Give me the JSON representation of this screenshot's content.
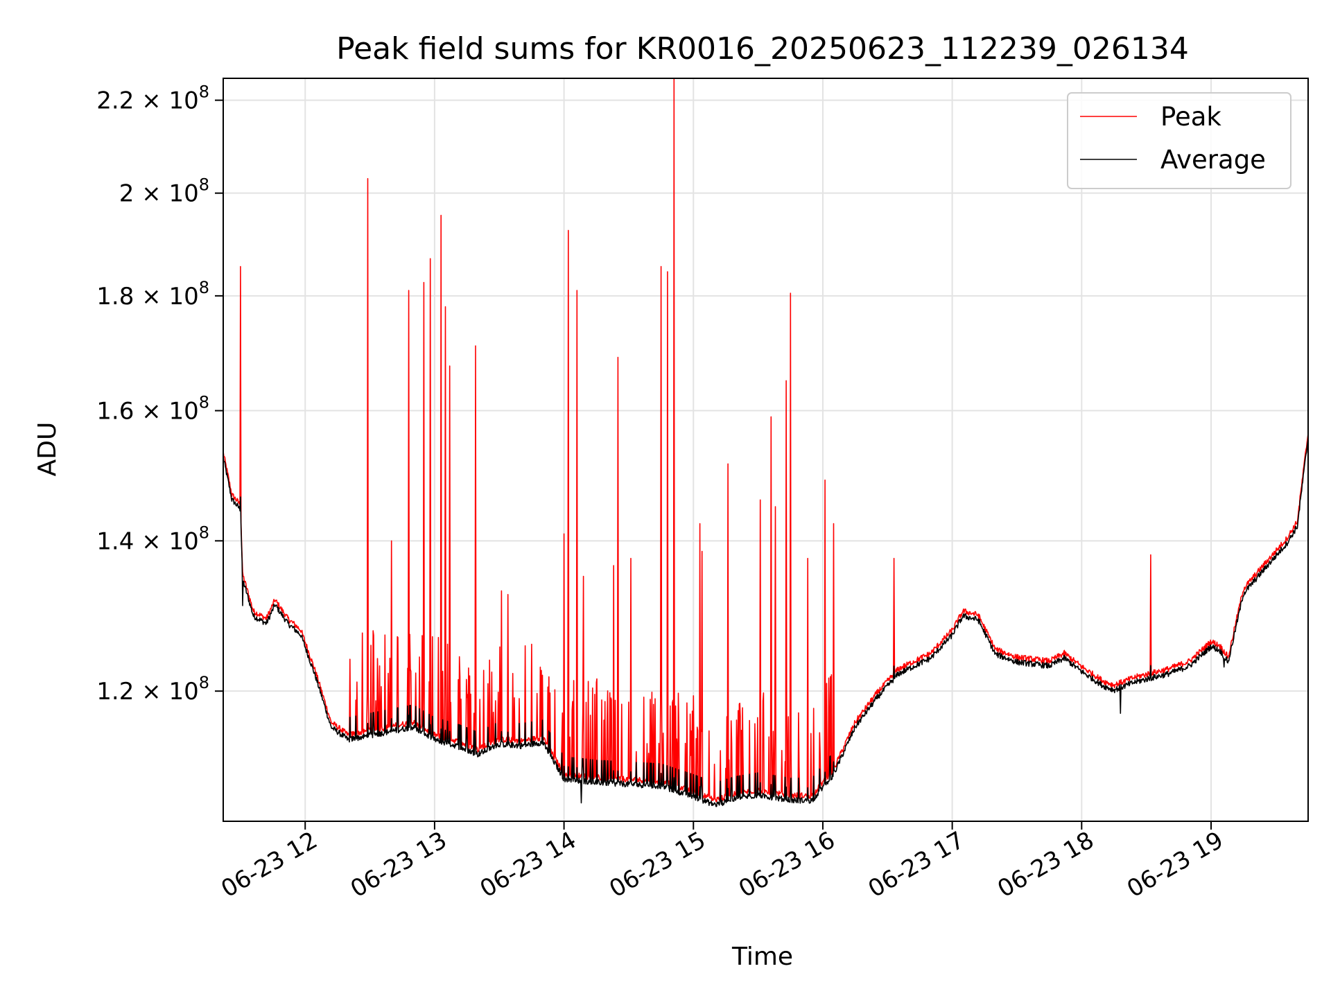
{
  "chart_data": {
    "type": "line",
    "title": "Peak field sums for KR0016_20250623_112239_026134",
    "xlabel": "Time",
    "ylabel": "ADU",
    "y_scale": "log",
    "x_unit": "time of day, 2025-06-23",
    "xlim": [
      "2025-06-23 11:22",
      "2025-06-23 19:45"
    ],
    "ylim": [
      105000000,
      225000000
    ],
    "x_ticks": [
      "2025-06-23 12:00",
      "2025-06-23 13:00",
      "2025-06-23 14:00",
      "2025-06-23 15:00",
      "2025-06-23 16:00",
      "2025-06-23 17:00",
      "2025-06-23 18:00",
      "2025-06-23 19:00"
    ],
    "x_tick_labels": [
      "06-23 12",
      "06-23 13",
      "06-23 14",
      "06-23 15",
      "06-23 16",
      "06-23 17",
      "06-23 18",
      "06-23 19"
    ],
    "y_ticks": [
      120000000,
      140000000,
      160000000,
      180000000,
      200000000,
      220000000
    ],
    "y_tick_labels": [
      {
        "mantissa": "1.2",
        "base": "10",
        "exp": "8"
      },
      {
        "mantissa": "1.4",
        "base": "10",
        "exp": "8"
      },
      {
        "mantissa": "1.6",
        "base": "10",
        "exp": "8"
      },
      {
        "mantissa": "1.8",
        "base": "10",
        "exp": "8"
      },
      {
        "mantissa": "2",
        "base": "10",
        "exp": "8"
      },
      {
        "mantissa": "2.2",
        "base": "10",
        "exp": "8"
      }
    ],
    "grid": true,
    "legend_position": "top-right",
    "series": [
      {
        "name": "Peak",
        "color": "#ff0000",
        "baseline_points": [
          [
            "2025-06-23 11:22",
            153000000
          ],
          [
            "2025-06-23 11:26",
            146500000
          ],
          [
            "2025-06-23 11:30",
            145000000
          ],
          [
            "2025-06-23 11:31",
            135000000
          ],
          [
            "2025-06-23 11:36",
            130000000
          ],
          [
            "2025-06-23 11:42",
            129000000
          ],
          [
            "2025-06-23 11:46",
            131500000
          ],
          [
            "2025-06-23 11:52",
            129000000
          ],
          [
            "2025-06-23 11:58",
            127500000
          ],
          [
            "2025-06-23 12:05",
            122000000
          ],
          [
            "2025-06-23 12:12",
            116000000
          ],
          [
            "2025-06-23 12:20",
            114500000
          ],
          [
            "2025-06-23 12:30",
            115000000
          ],
          [
            "2025-06-23 12:40",
            115500000
          ],
          [
            "2025-06-23 12:50",
            116000000
          ],
          [
            "2025-06-23 13:00",
            114500000
          ],
          [
            "2025-06-23 13:10",
            113800000
          ],
          [
            "2025-06-23 13:20",
            112800000
          ],
          [
            "2025-06-23 13:30",
            114000000
          ],
          [
            "2025-06-23 13:40",
            113800000
          ],
          [
            "2025-06-23 13:50",
            114200000
          ],
          [
            "2025-06-23 14:00",
            110000000
          ],
          [
            "2025-06-23 14:15",
            109600000
          ],
          [
            "2025-06-23 14:30",
            109400000
          ],
          [
            "2025-06-23 14:45",
            109200000
          ],
          [
            "2025-06-23 15:00",
            108000000
          ],
          [
            "2025-06-23 15:10",
            107100000
          ],
          [
            "2025-06-23 15:20",
            107800000
          ],
          [
            "2025-06-23 15:30",
            108200000
          ],
          [
            "2025-06-23 15:45",
            107600000
          ],
          [
            "2025-06-23 15:55",
            107600000
          ],
          [
            "2025-06-23 16:05",
            110500000
          ],
          [
            "2025-06-23 16:15",
            116000000
          ],
          [
            "2025-06-23 16:25",
            119500000
          ],
          [
            "2025-06-23 16:35",
            122500000
          ],
          [
            "2025-06-23 16:50",
            124500000
          ],
          [
            "2025-06-23 17:00",
            127500000
          ],
          [
            "2025-06-23 17:05",
            130000000
          ],
          [
            "2025-06-23 17:12",
            129500000
          ],
          [
            "2025-06-23 17:20",
            125000000
          ],
          [
            "2025-06-23 17:30",
            124000000
          ],
          [
            "2025-06-23 17:45",
            123500000
          ],
          [
            "2025-06-23 17:52",
            124500000
          ],
          [
            "2025-06-23 18:00",
            122800000
          ],
          [
            "2025-06-23 18:10",
            121000000
          ],
          [
            "2025-06-23 18:15",
            120500000
          ],
          [
            "2025-06-23 18:25",
            121500000
          ],
          [
            "2025-06-23 18:40",
            122500000
          ],
          [
            "2025-06-23 18:50",
            123500000
          ],
          [
            "2025-06-23 19:00",
            126000000
          ],
          [
            "2025-06-23 19:04",
            125500000
          ],
          [
            "2025-06-23 19:08",
            124000000
          ],
          [
            "2025-06-23 19:15",
            133000000
          ],
          [
            "2025-06-23 19:25",
            136500000
          ],
          [
            "2025-06-23 19:35",
            140000000
          ],
          [
            "2025-06-23 19:40",
            142500000
          ],
          [
            "2025-06-23 19:45",
            156000000
          ]
        ],
        "spikes": [
          [
            "2025-06-23 11:30",
            185500000
          ],
          [
            "2025-06-23 12:29",
            203000000
          ],
          [
            "2025-06-23 12:40",
            140000000
          ],
          [
            "2025-06-23 12:48",
            181000000
          ],
          [
            "2025-06-23 12:55",
            182500000
          ],
          [
            "2025-06-23 12:58",
            187000000
          ],
          [
            "2025-06-23 13:03",
            195500000
          ],
          [
            "2025-06-23 13:05",
            178000000
          ],
          [
            "2025-06-23 13:07",
            167500000
          ],
          [
            "2025-06-23 13:19",
            171000000
          ],
          [
            "2025-06-23 13:31",
            133000000
          ],
          [
            "2025-06-23 13:34",
            132500000
          ],
          [
            "2025-06-23 14:00",
            141000000
          ],
          [
            "2025-06-23 14:02",
            192500000
          ],
          [
            "2025-06-23 14:06",
            181000000
          ],
          [
            "2025-06-23 14:09",
            135000000
          ],
          [
            "2025-06-23 14:23",
            136500000
          ],
          [
            "2025-06-23 14:25",
            169000000
          ],
          [
            "2025-06-23 14:31",
            137500000
          ],
          [
            "2025-06-23 14:45",
            185500000
          ],
          [
            "2025-06-23 14:48",
            184500000
          ],
          [
            "2025-06-23 14:51",
            225000000
          ],
          [
            "2025-06-23 15:03",
            142500000
          ],
          [
            "2025-06-23 15:04",
            138500000
          ],
          [
            "2025-06-23 15:16",
            151500000
          ],
          [
            "2025-06-23 15:31",
            146000000
          ],
          [
            "2025-06-23 15:36",
            159000000
          ],
          [
            "2025-06-23 15:38",
            145000000
          ],
          [
            "2025-06-23 15:43",
            165000000
          ],
          [
            "2025-06-23 15:45",
            180500000
          ],
          [
            "2025-06-23 15:53",
            137500000
          ],
          [
            "2025-06-23 16:01",
            149000000
          ],
          [
            "2025-06-23 16:05",
            142500000
          ],
          [
            "2025-06-23 16:33",
            137500000
          ],
          [
            "2025-06-23 18:32",
            138000000
          ]
        ]
      },
      {
        "name": "Average",
        "color": "#000000",
        "dips": [
          [
            "2025-06-23 11:31",
            131000000
          ],
          [
            "2025-06-23 14:08",
            107000000
          ],
          [
            "2025-06-23 18:18",
            117300000
          ],
          [
            "2025-06-23 19:06",
            123000000
          ]
        ]
      }
    ]
  }
}
